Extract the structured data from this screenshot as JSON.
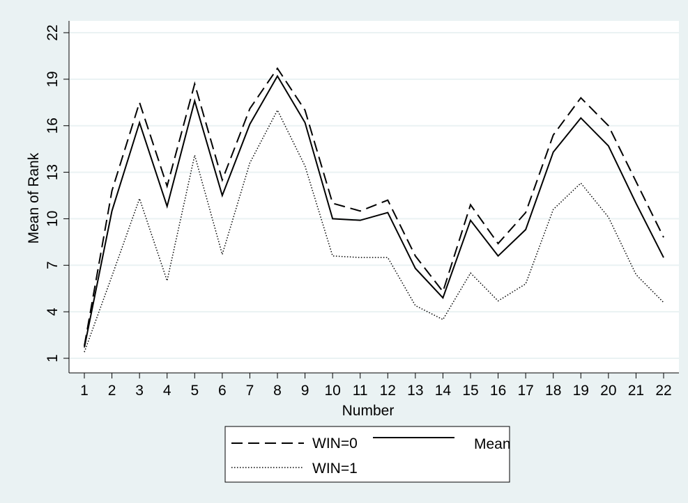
{
  "chart_data": {
    "type": "line",
    "xlabel": "Number",
    "ylabel": "Mean of Rank",
    "x": [
      1,
      2,
      3,
      4,
      5,
      6,
      7,
      8,
      9,
      10,
      11,
      12,
      13,
      14,
      15,
      16,
      17,
      18,
      19,
      20,
      21,
      22
    ],
    "xlim": [
      1,
      22
    ],
    "ylim": [
      0.6,
      22.6
    ],
    "yticks": [
      1,
      4,
      7,
      10,
      13,
      16,
      19,
      22
    ],
    "grid": true,
    "legend_position": "bottom",
    "series": [
      {
        "name": "WIN=0",
        "style": "dashed",
        "color": "#000000",
        "values": [
          1.8,
          11.8,
          17.5,
          12.1,
          18.7,
          12.5,
          17.1,
          19.7,
          17.0,
          11.0,
          10.5,
          11.2,
          7.6,
          5.3,
          10.9,
          8.4,
          10.4,
          15.4,
          17.8,
          16.0,
          12.4,
          8.8
        ]
      },
      {
        "name": "Mean",
        "style": "solid",
        "color": "#000000",
        "values": [
          1.7,
          10.5,
          16.2,
          10.8,
          17.6,
          11.5,
          16.1,
          19.2,
          16.2,
          10.0,
          9.9,
          10.4,
          6.8,
          4.9,
          9.9,
          7.6,
          9.3,
          14.3,
          16.5,
          14.7,
          11.0,
          7.5
        ]
      },
      {
        "name": "WIN=1",
        "style": "dotted",
        "color": "#000000",
        "values": [
          1.4,
          6.3,
          11.3,
          6.0,
          14.1,
          7.7,
          13.6,
          17.0,
          13.4,
          7.6,
          7.5,
          7.5,
          4.4,
          3.5,
          6.5,
          4.7,
          5.8,
          10.6,
          12.3,
          10.1,
          6.4,
          4.6
        ]
      }
    ]
  },
  "colors": {
    "page_background": "#eaf2f3",
    "plot_background": "#ffffff",
    "gridline": "#eaf2f3",
    "line": "#000000"
  }
}
